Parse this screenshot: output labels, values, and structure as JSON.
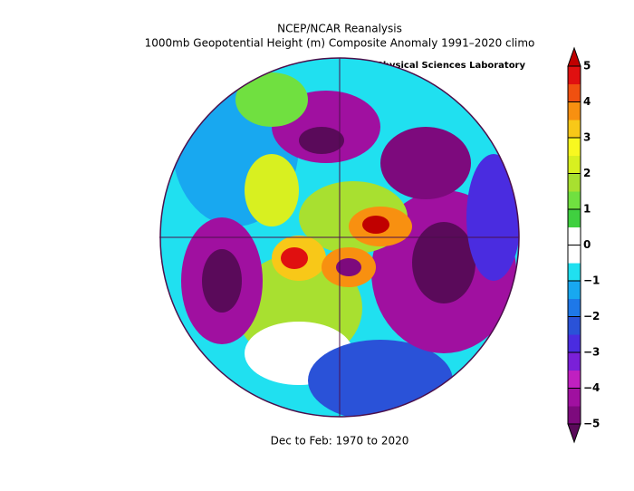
{
  "header": {
    "title": "NCEP/NCAR Reanalysis",
    "subtitle": "1000mb Geopotential Height (m) Composite Anomaly 1991–2020 climo",
    "credit": "NOAA Physical Sciences Laboratory"
  },
  "footer": "Dec to Feb: 1970 to 2020",
  "colorbar": {
    "lim": [
      -5,
      5
    ],
    "ticks": [
      {
        "value": -5,
        "label": "−5"
      },
      {
        "value": -4,
        "label": "−4"
      },
      {
        "value": -3,
        "label": "−3"
      },
      {
        "value": -2,
        "label": "−2"
      },
      {
        "value": -1,
        "label": "−1"
      },
      0,
      1,
      2,
      3,
      4,
      5
    ],
    "colors": [
      "#5a0a5a",
      "#7d0a7d",
      "#a010a0",
      "#c020c0",
      "#7a20d8",
      "#4a2ce0",
      "#2a52d8",
      "#1e78e8",
      "#18a8f0",
      "#20e0f0",
      "#ffffff",
      "#ffffff",
      "#40d040",
      "#70e040",
      "#a8e030",
      "#d8f020",
      "#f8f820",
      "#f8c818",
      "#f89010",
      "#f05010",
      "#e01010",
      "#c00000"
    ]
  }
}
